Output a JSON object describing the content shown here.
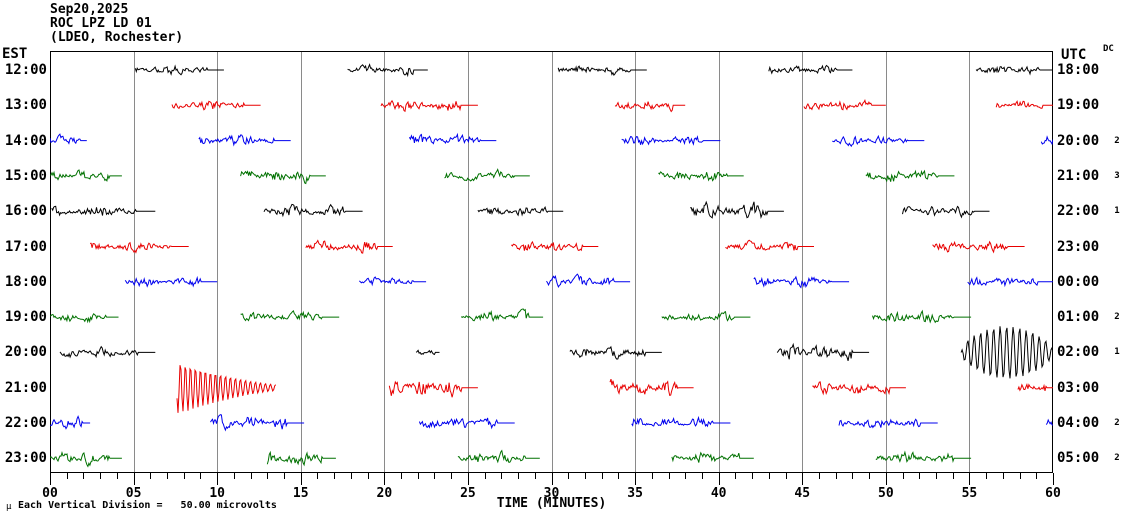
{
  "header": {
    "date": "Sep20,2025",
    "station": "ROC LPZ LD 01",
    "network": "(LDEO, Rochester)"
  },
  "axes": {
    "left_label": "EST",
    "right_label": "UTC",
    "dc_label": "DC"
  },
  "x_axis": {
    "title": "TIME (MINUTES)",
    "tick_labels": [
      "00",
      "05",
      "10",
      "15",
      "20",
      "25",
      "30",
      "35",
      "40",
      "45",
      "50",
      "55",
      "60"
    ],
    "minutes_per_major": 5,
    "minor_tick_every_minute": true
  },
  "footer": {
    "mu": "μ",
    "scale_note": "Each Vertical Division =   50.00 microvolts"
  },
  "colors": {
    "trace": {
      "black": "#000000",
      "red": "#e80000",
      "blue": "#0000ee",
      "green": "#007100"
    },
    "grid": "#8a8a8a",
    "frame": "#000000",
    "background": "#ffffff"
  },
  "chart_data": {
    "type": "line",
    "title": "ROC LPZ LD 01 helicorder (LDEO, Rochester) Sep20,2025",
    "xlabel": "TIME (MINUTES)",
    "x_range": [
      0,
      60
    ],
    "grid": "vertical every 5 minutes",
    "vertical_division_microvolts": 50.0,
    "segment_format": [
      "start_min",
      "end_min",
      "amp_px",
      "kind(optional: noise|decay|spindle)",
      "period_px(optional)"
    ],
    "rows": [
      {
        "est": "12:00",
        "utc": "18:00",
        "dc": "",
        "color": "black",
        "segments": [
          [
            5.1,
            10.4,
            3
          ],
          [
            17.8,
            22.6,
            3
          ],
          [
            30.4,
            35.7,
            3
          ],
          [
            43.0,
            48.0,
            2.5
          ],
          [
            55.4,
            60,
            3
          ]
        ]
      },
      {
        "est": "13:00",
        "utc": "19:00",
        "dc": "",
        "color": "red",
        "segments": [
          [
            7.3,
            12.6,
            3
          ],
          [
            19.8,
            25.6,
            3.5
          ],
          [
            33.8,
            38.0,
            3
          ],
          [
            45.1,
            50.0,
            3
          ],
          [
            56.6,
            60,
            2.5
          ]
        ]
      },
      {
        "est": "14:00",
        "utc": "20:00",
        "dc": "2",
        "color": "blue",
        "segments": [
          [
            0,
            2.2,
            3
          ],
          [
            8.9,
            14.4,
            3.5
          ],
          [
            21.5,
            26.7,
            3.5
          ],
          [
            34.2,
            40.1,
            3
          ],
          [
            46.8,
            52.3,
            3
          ],
          [
            59.3,
            60,
            3
          ]
        ]
      },
      {
        "est": "15:00",
        "utc": "21:00",
        "dc": "3",
        "color": "green",
        "segments": [
          [
            0,
            4.3,
            3
          ],
          [
            11.4,
            16.5,
            4
          ],
          [
            23.6,
            28.7,
            3
          ],
          [
            36.4,
            41.5,
            3.5
          ],
          [
            48.8,
            54.1,
            3.5
          ]
        ]
      },
      {
        "est": "16:00",
        "utc": "22:00",
        "dc": "1",
        "color": "black",
        "segments": [
          [
            0.1,
            6.3,
            3.5
          ],
          [
            12.8,
            18.7,
            3.5
          ],
          [
            25.6,
            30.7,
            3
          ],
          [
            38.3,
            43.9,
            5
          ],
          [
            51.0,
            56.2,
            3
          ]
        ]
      },
      {
        "est": "17:00",
        "utc": "23:00",
        "dc": "",
        "color": "red",
        "segments": [
          [
            2.4,
            8.3,
            3
          ],
          [
            15.3,
            20.5,
            3.5
          ],
          [
            27.6,
            32.8,
            3.5
          ],
          [
            40.4,
            45.7,
            3.5
          ],
          [
            52.8,
            58.3,
            3
          ]
        ]
      },
      {
        "est": "18:00",
        "utc": "00:00",
        "dc": "",
        "color": "blue",
        "segments": [
          [
            4.5,
            10.0,
            3
          ],
          [
            18.5,
            22.5,
            2.5
          ],
          [
            29.7,
            34.7,
            3.5
          ],
          [
            42.1,
            47.8,
            3.5
          ],
          [
            54.9,
            60,
            3
          ]
        ]
      },
      {
        "est": "19:00",
        "utc": "01:00",
        "dc": "2",
        "color": "green",
        "segments": [
          [
            0,
            4.1,
            3
          ],
          [
            11.4,
            17.3,
            3
          ],
          [
            24.6,
            29.5,
            3.5
          ],
          [
            36.6,
            41.9,
            3
          ],
          [
            49.2,
            55.1,
            3.5
          ]
        ]
      },
      {
        "est": "20:00",
        "utc": "02:00",
        "dc": "1",
        "color": "black",
        "segments": [
          [
            0.6,
            6.3,
            3
          ],
          [
            21.9,
            23.3,
            1.5
          ],
          [
            31.1,
            36.6,
            3.5
          ],
          [
            43.5,
            49.0,
            5
          ],
          [
            54.5,
            60,
            26,
            "spindle",
            6.5
          ]
        ]
      },
      {
        "est": "21:00",
        "utc": "03:00",
        "dc": "",
        "color": "red",
        "segments": [
          [
            7.6,
            13.5,
            26,
            "decay",
            5
          ],
          [
            20.3,
            25.6,
            5
          ],
          [
            33.5,
            38.5,
            4.5
          ],
          [
            45.6,
            51.2,
            4
          ],
          [
            57.9,
            60,
            3.5
          ]
        ]
      },
      {
        "est": "22:00",
        "utc": "04:00",
        "dc": "2",
        "color": "blue",
        "segments": [
          [
            0,
            2.4,
            4
          ],
          [
            9.6,
            15.2,
            4
          ],
          [
            22.1,
            27.8,
            3.5
          ],
          [
            34.8,
            40.7,
            3.5
          ],
          [
            47.2,
            53.1,
            3.5
          ],
          [
            59.6,
            60,
            3
          ]
        ]
      },
      {
        "est": "23:00",
        "utc": "05:00",
        "dc": "2",
        "color": "green",
        "segments": [
          [
            0,
            4.3,
            3.5
          ],
          [
            13.0,
            17.1,
            5
          ],
          [
            24.4,
            29.3,
            3.5
          ],
          [
            37.2,
            42.1,
            3.5
          ],
          [
            49.4,
            55.1,
            3.5
          ]
        ]
      }
    ]
  }
}
